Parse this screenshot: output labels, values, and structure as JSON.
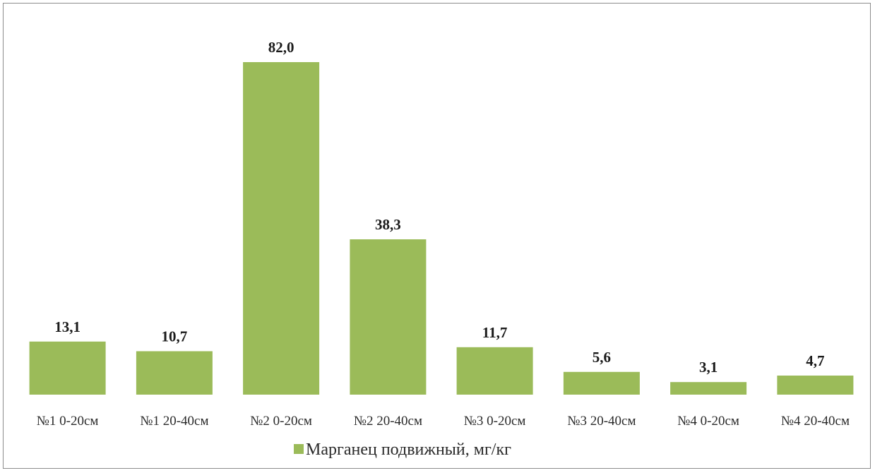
{
  "chart_data": {
    "type": "bar",
    "categories": [
      "№1 0-20см",
      "№1 20-40см",
      "№2 0-20см",
      "№2 20-40см",
      "№3 0-20см",
      "№3 20-40см",
      "№4 0-20см",
      "№4 20-40см"
    ],
    "series": [
      {
        "name": "Марганец подвижный, мг/кг",
        "values": [
          13.1,
          10.7,
          82.0,
          38.3,
          11.7,
          5.6,
          3.1,
          4.7
        ],
        "color": "#9bbb59"
      }
    ],
    "data_labels": [
      "13,1",
      "10,7",
      "82,0",
      "38,3",
      "11,7",
      "5,6",
      "3,1",
      "4,7"
    ],
    "ylim": [
      0,
      82.0
    ],
    "grid": false,
    "legend_position": "bottom"
  }
}
